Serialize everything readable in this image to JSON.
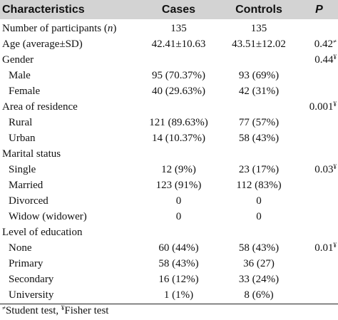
{
  "header": {
    "characteristics": "Characteristics",
    "cases": "Cases",
    "controls": "Controls",
    "p": "P"
  },
  "rows": [
    {
      "label_main": "Number of participants (",
      "label_italic": "n",
      "label_tail": ")",
      "cases": "135",
      "controls": "135",
      "p": "",
      "p_sup": ""
    },
    {
      "label_main": "Age (average±SD)",
      "cases": "42.41±10.63",
      "controls": "43.51±12.02",
      "p": "0.42",
      "p_sup": "≠"
    },
    {
      "label_main": "Gender",
      "cases": "",
      "controls": "",
      "p": "0.44",
      "p_sup": "¥"
    },
    {
      "label_main": "Male",
      "cases": "95 (70.37%)",
      "controls": "93 (69%)",
      "p": "",
      "p_sup": ""
    },
    {
      "label_main": "Female",
      "cases": "40 (29.63%)",
      "controls": "42 (31%)",
      "p": "",
      "p_sup": ""
    },
    {
      "label_main": "Area of residence",
      "cases": "",
      "controls": "",
      "p": "0.001",
      "p_sup": "¥"
    },
    {
      "label_main": "Rural",
      "cases": "121 (89.63%)",
      "controls": "77 (57%)",
      "p": "",
      "p_sup": ""
    },
    {
      "label_main": "Urban",
      "cases": "14 (10.37%)",
      "controls": "58 (43%)",
      "p": "",
      "p_sup": ""
    },
    {
      "label_main": "Marital status",
      "cases": "",
      "controls": "",
      "p": "",
      "p_sup": ""
    },
    {
      "label_main": "Single",
      "cases": "12 (9%)",
      "controls": "23 (17%)",
      "p": "0.03",
      "p_sup": "¥"
    },
    {
      "label_main": "Married",
      "cases": "123 (91%)",
      "controls": "112 (83%)",
      "p": "",
      "p_sup": ""
    },
    {
      "label_main": "Divorced",
      "cases": "0",
      "controls": "0",
      "p": "",
      "p_sup": ""
    },
    {
      "label_main": "Widow (widower)",
      "cases": "0",
      "controls": "0",
      "p": "",
      "p_sup": ""
    },
    {
      "label_main": "Level of education",
      "cases": "",
      "controls": "",
      "p": "",
      "p_sup": ""
    },
    {
      "label_main": "None",
      "cases": "60 (44%)",
      "controls": "58 (43%)",
      "p": "0.01",
      "p_sup": "¥"
    },
    {
      "label_main": "Primary",
      "cases": "58 (43%)",
      "controls": "36 (27)",
      "p": "",
      "p_sup": ""
    },
    {
      "label_main": "Secondary",
      "cases": "16 (12%)",
      "controls": "33 (24%)",
      "p": "",
      "p_sup": ""
    },
    {
      "label_main": "University",
      "cases": "1 (1%)",
      "controls": "8 (6%)",
      "p": "",
      "p_sup": ""
    }
  ],
  "footnote": {
    "sup1": "≠",
    "text1": "Student test, ",
    "sup2": "¥",
    "text2": "Fisher test"
  }
}
